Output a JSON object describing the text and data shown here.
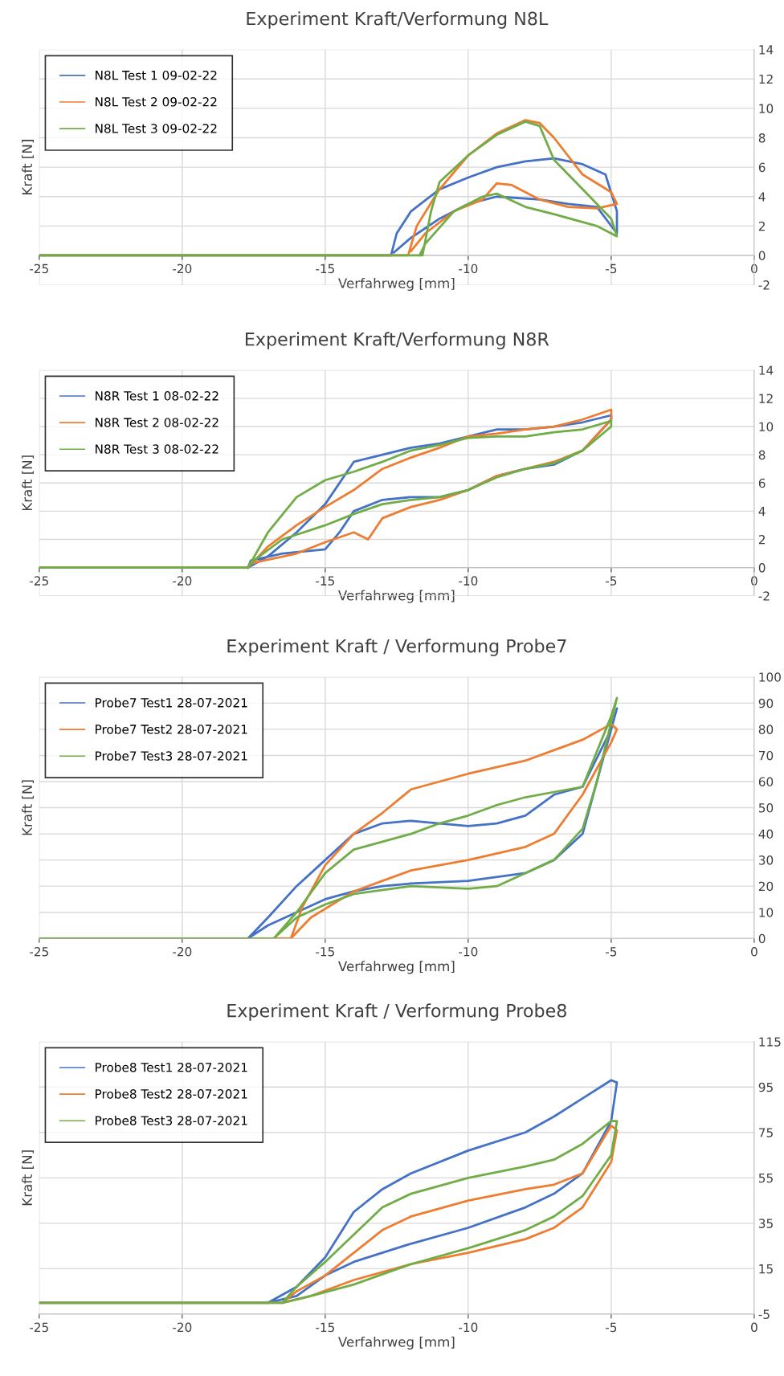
{
  "chart_data": [
    {
      "type": "line",
      "title": "Experiment Kraft/Verformung N8L",
      "xlabel": "Verfahrweg [mm]",
      "ylabel": "Kraft [N]",
      "xlim": [
        -25,
        0
      ],
      "xticks": [
        -25,
        -20,
        -15,
        -10,
        -5,
        0
      ],
      "ylim": [
        -2,
        14
      ],
      "yticks": [
        -2,
        0,
        2,
        4,
        6,
        8,
        10,
        12,
        14
      ],
      "grid": true,
      "legend": "top left",
      "series": [
        {
          "name": "N8L Test 1 09-02-22",
          "color": "#4472c4",
          "x": [
            -25,
            -12.7,
            -12.5,
            -12,
            -11,
            -10,
            -9,
            -8,
            -7,
            -6,
            -5.2,
            -4.8,
            -4.8,
            -5.5,
            -6.5,
            -7.5,
            -9,
            -10,
            -11,
            -12,
            -12.6
          ],
          "values": [
            0,
            0,
            1.5,
            3,
            4.5,
            5.3,
            6,
            6.4,
            6.6,
            6.2,
            5.5,
            3,
            1.5,
            3.3,
            3.5,
            3.8,
            4,
            3.5,
            2.5,
            1.2,
            0.2
          ]
        },
        {
          "name": "N8L Test 2 09-02-22",
          "color": "#ed7d31",
          "x": [
            -25,
            -12.1,
            -11.8,
            -11,
            -10,
            -9,
            -8,
            -7.5,
            -7,
            -6,
            -5,
            -4.8,
            -5.5,
            -6.5,
            -7.5,
            -8.5,
            -9,
            -9.5,
            -10.5,
            -11.5,
            -12
          ],
          "values": [
            0,
            0,
            2,
            4.5,
            6.8,
            8.3,
            9.2,
            9,
            8,
            5.5,
            4.3,
            3.5,
            3.2,
            3.3,
            3.8,
            4.8,
            4.9,
            3.8,
            3,
            1.5,
            0.3
          ]
        },
        {
          "name": "N8L Test 3 09-02-22",
          "color": "#70ad47",
          "x": [
            -25,
            -11.6,
            -11.3,
            -11,
            -10,
            -9,
            -8,
            -7.5,
            -7,
            -6,
            -5,
            -4.8,
            -5.5,
            -7,
            -8,
            -9,
            -9.5,
            -10.5,
            -11.5,
            -11.7
          ],
          "values": [
            0,
            0,
            3,
            5,
            6.8,
            8.2,
            9.1,
            8.8,
            6.5,
            4.5,
            2.5,
            1.3,
            2,
            2.8,
            3.3,
            4.2,
            4,
            3,
            0.8,
            0
          ]
        }
      ]
    },
    {
      "type": "line",
      "title": "Experiment Kraft/Verformung N8R",
      "xlabel": "Verfahrweg [mm]",
      "ylabel": "Kraft [N]",
      "xlim": [
        -25,
        0
      ],
      "xticks": [
        -25,
        -20,
        -15,
        -10,
        -5,
        0
      ],
      "ylim": [
        -2,
        14
      ],
      "yticks": [
        -2,
        0,
        2,
        4,
        6,
        8,
        10,
        12,
        14
      ],
      "grid": true,
      "legend": "top left",
      "series": [
        {
          "name": "N8R Test 1 08-02-22",
          "color": "#4472c4",
          "x": [
            -25,
            -17.7,
            -17.6,
            -16.5,
            -15,
            -14.5,
            -14,
            -13,
            -12,
            -11,
            -10,
            -9,
            -8,
            -7,
            -6,
            -5,
            -5,
            -6,
            -7,
            -8,
            -9,
            -10,
            -11,
            -12,
            -13,
            -14,
            -15,
            -16,
            -17,
            -17.7
          ],
          "values": [
            0,
            0,
            0.5,
            1,
            1.3,
            2.5,
            4,
            4.8,
            5,
            5,
            5.5,
            6.5,
            7,
            7.3,
            8.3,
            10.5,
            10.8,
            10.3,
            10,
            9.8,
            9.8,
            9.3,
            8.8,
            8.5,
            8,
            7.5,
            4.5,
            2.5,
            0.8,
            0
          ]
        },
        {
          "name": "N8R Test 2 08-02-22",
          "color": "#ed7d31",
          "x": [
            -25,
            -17.7,
            -17.6,
            -16,
            -15,
            -14,
            -13.5,
            -13,
            -12,
            -11,
            -10,
            -9,
            -8,
            -7,
            -6,
            -5,
            -5,
            -6,
            -7,
            -8,
            -9,
            -10,
            -11,
            -12,
            -13,
            -14,
            -15,
            -16,
            -17,
            -17.7
          ],
          "values": [
            0,
            0,
            0.3,
            1,
            1.8,
            2.5,
            2,
            3.5,
            4.3,
            4.8,
            5.5,
            6.5,
            7,
            7.5,
            8.3,
            10.5,
            11.2,
            10.5,
            10,
            9.8,
            9.5,
            9.3,
            8.5,
            7.8,
            7,
            5.5,
            4.3,
            3,
            1.5,
            0
          ]
        },
        {
          "name": "N8R Test 3 08-02-22",
          "color": "#70ad47",
          "x": [
            -25,
            -17.7,
            -17.5,
            -16.5,
            -15,
            -14,
            -13,
            -12,
            -11,
            -10,
            -9,
            -8,
            -7,
            -6,
            -5,
            -5,
            -6,
            -7,
            -8,
            -9,
            -10,
            -11,
            -12,
            -13,
            -14,
            -15,
            -16,
            -17,
            -17.7
          ],
          "values": [
            0,
            0,
            0.5,
            2,
            3,
            3.8,
            4.5,
            4.8,
            5,
            5.5,
            6.4,
            7,
            7.4,
            8.3,
            10,
            10.4,
            9.8,
            9.6,
            9.3,
            9.3,
            9.2,
            8.7,
            8.3,
            7.5,
            6.8,
            6.2,
            5,
            2.5,
            0
          ]
        }
      ]
    },
    {
      "type": "line",
      "title": "Experiment Kraft / Verformung Probe7",
      "xlabel": "Verfahrweg [mm]",
      "ylabel": "Kraft [N]",
      "xlim": [
        -25,
        0
      ],
      "xticks": [
        -25,
        -20,
        -15,
        -10,
        -5,
        0
      ],
      "ylim": [
        0,
        100
      ],
      "yticks": [
        0,
        10,
        20,
        30,
        40,
        50,
        60,
        70,
        80,
        90,
        100
      ],
      "grid": true,
      "legend": "top left",
      "series": [
        {
          "name": "Probe7 Test1 28-07-2021",
          "color": "#4472c4",
          "x": [
            -25,
            -17.7,
            -17,
            -16,
            -15,
            -14,
            -13,
            -12,
            -10,
            -8,
            -7,
            -6,
            -5.5,
            -4.8,
            -5,
            -6,
            -7,
            -8,
            -9,
            -10,
            -11,
            -12,
            -13,
            -14,
            -15,
            -16,
            -17,
            -17.7
          ],
          "values": [
            0,
            0,
            5,
            10,
            15,
            18,
            20,
            21,
            22,
            25,
            30,
            40,
            60,
            88,
            80,
            58,
            55,
            47,
            44,
            43,
            44,
            45,
            44,
            40,
            30,
            20,
            8,
            0
          ]
        },
        {
          "name": "Probe7 Test2 28-07-2021",
          "color": "#ed7d31",
          "x": [
            -25,
            -16.2,
            -15.5,
            -14,
            -13,
            -12,
            -10,
            -8,
            -7,
            -6,
            -5,
            -4.8,
            -5,
            -6,
            -7,
            -8,
            -10,
            -12,
            -13,
            -14,
            -15,
            -15.8,
            -16.2
          ],
          "values": [
            0,
            0,
            8,
            18,
            22,
            26,
            30,
            35,
            40,
            55,
            75,
            80,
            82,
            76,
            72,
            68,
            63,
            57,
            48,
            40,
            28,
            12,
            0
          ]
        },
        {
          "name": "Probe7 Test3 28-07-2021",
          "color": "#70ad47",
          "x": [
            -25,
            -16.8,
            -16,
            -15,
            -14,
            -12,
            -10,
            -9,
            -8,
            -7,
            -6,
            -5.5,
            -4.8,
            -5,
            -6,
            -7,
            -8,
            -9,
            -10,
            -11,
            -12,
            -13,
            -14,
            -15,
            -16,
            -16.8
          ],
          "values": [
            0,
            0,
            8,
            13,
            17,
            20,
            19,
            20,
            25,
            30,
            42,
            60,
            92,
            85,
            58,
            56,
            54,
            51,
            47,
            44,
            40,
            37,
            34,
            25,
            10,
            0
          ]
        }
      ]
    },
    {
      "type": "line",
      "title": "Experiment Kraft / Verformung Probe8",
      "xlabel": "Verfahrweg [mm]",
      "ylabel": "Kraft [N]",
      "xlim": [
        -25,
        0
      ],
      "xticks": [
        -25,
        -20,
        -15,
        -10,
        -5,
        0
      ],
      "ylim": [
        -5,
        115
      ],
      "yticks": [
        -5,
        15,
        35,
        55,
        75,
        95,
        115
      ],
      "grid": true,
      "legend": "top left",
      "series": [
        {
          "name": "Probe8 Test1 28-07-2021",
          "color": "#4472c4",
          "x": [
            -25,
            -17,
            -16,
            -15,
            -14,
            -12,
            -10,
            -8,
            -7,
            -6,
            -5,
            -4.8,
            -5,
            -6,
            -7,
            -8,
            -10,
            -12,
            -13,
            -14,
            -15,
            -16,
            -17
          ],
          "values": [
            0,
            0,
            3,
            12,
            18,
            26,
            33,
            42,
            48,
            57,
            80,
            97,
            98,
            90,
            82,
            75,
            67,
            57,
            50,
            40,
            20,
            7,
            0
          ]
        },
        {
          "name": "Probe8 Test2 28-07-2021",
          "color": "#ed7d31",
          "x": [
            -25,
            -16.5,
            -15.5,
            -14,
            -12,
            -10,
            -8,
            -7,
            -6,
            -5,
            -4.8,
            -5,
            -6,
            -7,
            -8,
            -10,
            -12,
            -13,
            -14,
            -15,
            -16,
            -16.5
          ],
          "values": [
            0,
            0,
            3,
            10,
            17,
            22,
            28,
            33,
            42,
            62,
            76,
            78,
            57,
            52,
            50,
            45,
            38,
            32,
            22,
            12,
            5,
            0
          ]
        },
        {
          "name": "Probe8 Test3 28-07-2021",
          "color": "#70ad47",
          "x": [
            -25,
            -16.5,
            -15.5,
            -14,
            -12,
            -10,
            -8,
            -7,
            -6,
            -5,
            -4.8,
            -5,
            -6,
            -7,
            -8,
            -10,
            -12,
            -13,
            -14,
            -15,
            -16,
            -16.5
          ],
          "values": [
            0,
            0,
            3,
            8,
            17,
            24,
            32,
            38,
            47,
            65,
            80,
            80,
            70,
            63,
            60,
            55,
            48,
            42,
            30,
            18,
            7,
            0
          ]
        }
      ]
    }
  ]
}
